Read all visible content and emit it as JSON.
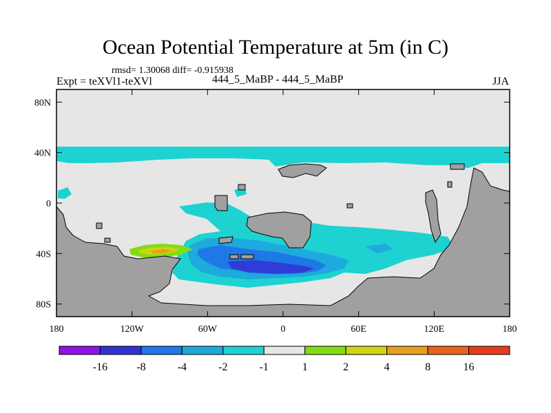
{
  "title": "Ocean Potential Temperature at 5m (in C)",
  "stats": "rmsd= 1.30068 diff= -0.915938",
  "left_label": "Expt = teXVl1-teXVl",
  "center_label": "444_5_MaBP - 444_5_MaBP",
  "right_label": "JJA",
  "chart_data": {
    "type": "heatmap",
    "projection": "cylindrical-equidistant",
    "variable": "Ocean Potential Temperature difference at 5m",
    "units": "C",
    "xlim": [
      -180,
      180
    ],
    "ylim": [
      -90,
      90
    ],
    "x_ticks": [
      {
        "value": -180,
        "label": "180"
      },
      {
        "value": -120,
        "label": "120W"
      },
      {
        "value": -60,
        "label": "60W"
      },
      {
        "value": 0,
        "label": "0"
      },
      {
        "value": 60,
        "label": "60E"
      },
      {
        "value": 120,
        "label": "120E"
      },
      {
        "value": 180,
        "label": "180"
      }
    ],
    "y_ticks": [
      {
        "value": 80,
        "label": "80N"
      },
      {
        "value": 40,
        "label": "40N"
      },
      {
        "value": 0,
        "label": "0"
      },
      {
        "value": -40,
        "label": "40S"
      },
      {
        "value": -80,
        "label": "80S"
      }
    ],
    "colorbar": {
      "colors": [
        "#8c14e6",
        "#3232d2",
        "#1e78e6",
        "#1eaadc",
        "#1ed2d2",
        "#e6e6e6",
        "#82dc14",
        "#d2d214",
        "#e6a01e",
        "#e6641e",
        "#e63c1e"
      ],
      "boundary_labels": [
        "-16",
        "-8",
        "-4",
        "-2",
        "-1",
        "1",
        "2",
        "4",
        "8",
        "16"
      ]
    },
    "land_color": "#a0a0a0",
    "no_change_color": "#e6e6e6"
  }
}
